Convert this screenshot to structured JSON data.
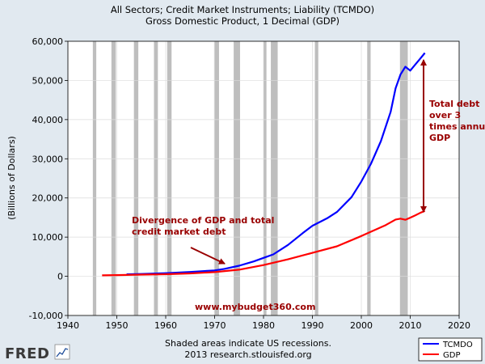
{
  "chart_data": {
    "type": "line",
    "title_line1": "All Sectors; Credit Market Instruments; Liability (TCMDO)",
    "title_line2": "Gross Domestic Product, 1 Decimal (GDP)",
    "ylabel": "(Billions of Dollars)",
    "xlabel": "",
    "xlim": [
      1940,
      2020
    ],
    "ylim": [
      -10000,
      60000
    ],
    "x_ticks": [
      1940,
      1950,
      1960,
      1970,
      1980,
      1990,
      2000,
      2010,
      2020
    ],
    "y_ticks": [
      -10000,
      0,
      10000,
      20000,
      30000,
      40000,
      50000,
      60000
    ],
    "y_tick_labels": [
      "-10,000",
      "0",
      "10,000",
      "20,000",
      "30,000",
      "40,000",
      "50,000",
      "60,000"
    ],
    "grid": true,
    "recessions": [
      [
        1945.1,
        1945.8
      ],
      [
        1948.9,
        1949.8
      ],
      [
        1953.5,
        1954.4
      ],
      [
        1957.6,
        1958.4
      ],
      [
        1960.3,
        1961.2
      ],
      [
        1969.9,
        1970.9
      ],
      [
        1973.9,
        1975.2
      ],
      [
        1980.0,
        1980.6
      ],
      [
        1981.5,
        1982.9
      ],
      [
        1990.5,
        1991.2
      ],
      [
        2001.2,
        2001.9
      ],
      [
        2007.9,
        2009.5
      ]
    ],
    "series": [
      {
        "name": "TCMDO",
        "color": "#0000ff",
        "x": [
          1952,
          1955,
          1960,
          1965,
          1970,
          1972,
          1975,
          1978,
          1980,
          1982,
          1985,
          1988,
          1990,
          1993,
          1995,
          1998,
          2000,
          2002,
          2004,
          2006,
          2007,
          2008,
          2009,
          2010,
          2011,
          2012,
          2013
        ],
        "values": [
          500,
          600,
          800,
          1100,
          1500,
          1900,
          2700,
          3800,
          4700,
          5600,
          8000,
          11000,
          12900,
          14800,
          16400,
          20200,
          24200,
          28800,
          34500,
          42000,
          48000,
          51500,
          53500,
          52500,
          54000,
          55500,
          57000
        ]
      },
      {
        "name": "GDP",
        "color": "#ff0000",
        "x": [
          1947,
          1950,
          1955,
          1960,
          1965,
          1970,
          1975,
          1980,
          1985,
          1990,
          1995,
          2000,
          2005,
          2007,
          2008,
          2009,
          2010,
          2011,
          2012,
          2013
        ],
        "values": [
          240,
          300,
          420,
          540,
          740,
          1060,
          1690,
          2860,
          4340,
          5980,
          7660,
          10280,
          13090,
          14480,
          14720,
          14420,
          14960,
          15520,
          16160,
          16700
        ]
      }
    ],
    "legend": [
      "TCMDO",
      "GDP"
    ],
    "legend_position": "bottom-right"
  },
  "annotations": {
    "divergence": [
      "Divergence of GDP and total",
      "credit market debt"
    ],
    "total_debt": [
      "Total debt",
      "over 3",
      "times annual",
      "GDP"
    ],
    "watermark": "www.mybudget360.com"
  },
  "footer": {
    "note_line1": "Shaded areas indicate US recessions.",
    "note_line2": "2013 research.stlouisfed.org",
    "logo": "FRED"
  },
  "colors": {
    "background": "#e1e9f0",
    "plot": "#ffffff",
    "recession": "#bebebe",
    "annotation": "#990000"
  }
}
